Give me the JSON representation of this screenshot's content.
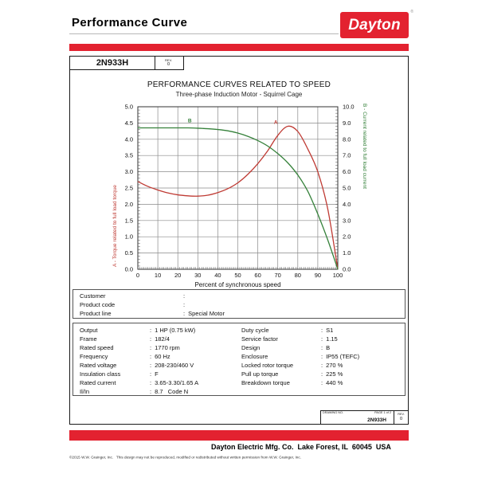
{
  "colors": {
    "brand_red": "#e32230",
    "torque_red": "#bf3a33",
    "current_green": "#35813a",
    "grid_gray": "#8a8a8a",
    "plot_border": "#333333"
  },
  "header": {
    "title": "Performance Curve",
    "logo_text": "Dayton",
    "logo_reg": "®"
  },
  "part_box": {
    "part_number": "2N933H",
    "rev_label": "REV.",
    "rev_value": "0"
  },
  "chart_data": {
    "type": "line",
    "title": "PERFORMANCE CURVES RELATED TO SPEED",
    "subtitle": "Three-phase Induction Motor - Squirrel Cage",
    "x_axis": {
      "label": "Percent of synchronous speed",
      "min": 0,
      "max": 100,
      "step": 10
    },
    "left_axis": {
      "label": "A - Torque related to full load torque",
      "min": 0,
      "max": 5,
      "step": 0.5,
      "color": "#bf3a33"
    },
    "right_axis": {
      "label": "B - Current related to full load current",
      "min": 0,
      "max": 10,
      "step": 1,
      "color": "#35813a"
    },
    "grid": true,
    "series": [
      {
        "name": "A - Torque",
        "axis": "left",
        "color": "#bf3a33",
        "x": [
          0,
          5,
          10,
          15,
          20,
          25,
          30,
          35,
          40,
          45,
          50,
          55,
          60,
          65,
          70,
          75,
          80,
          85,
          90,
          95,
          100
        ],
        "y": [
          2.7,
          2.55,
          2.44,
          2.35,
          2.29,
          2.26,
          2.25,
          2.28,
          2.36,
          2.48,
          2.66,
          2.92,
          3.25,
          3.65,
          4.12,
          4.4,
          4.24,
          3.7,
          3.0,
          1.85,
          0.0
        ],
        "marker": {
          "label": "A",
          "x": 69,
          "y": 4.47
        }
      },
      {
        "name": "B - Current",
        "axis": "right",
        "color": "#35813a",
        "x": [
          0,
          5,
          10,
          15,
          20,
          25,
          30,
          35,
          40,
          45,
          50,
          55,
          60,
          65,
          70,
          75,
          80,
          85,
          90,
          95,
          100
        ],
        "y": [
          8.7,
          8.7,
          8.7,
          8.7,
          8.7,
          8.7,
          8.68,
          8.65,
          8.6,
          8.52,
          8.38,
          8.18,
          7.92,
          7.58,
          7.12,
          6.55,
          5.8,
          4.8,
          3.4,
          1.8,
          0.0
        ],
        "marker": {
          "label": "B",
          "x": 26,
          "y": 9.05
        }
      }
    ]
  },
  "customer_table": {
    "rows": [
      {
        "label": "Customer",
        "value": ""
      },
      {
        "label": "Product code",
        "value": ""
      },
      {
        "label": "Product line",
        "value": "Special Motor"
      }
    ]
  },
  "specs": {
    "left": [
      {
        "label": "Output",
        "value": "1 HP (0.75 kW)"
      },
      {
        "label": "Frame",
        "value": "182/4"
      },
      {
        "label": "Rated speed",
        "value": "1770 rpm"
      },
      {
        "label": "Frequency",
        "value": "60 Hz"
      },
      {
        "label": "Rated voltage",
        "value": "208-230/460 V"
      },
      {
        "label": "Insulation class",
        "value": "F"
      },
      {
        "label": "Rated current",
        "value": "3.65-3.30/1.65 A"
      },
      {
        "label": "Il/In",
        "value": "8.7   Code N"
      }
    ],
    "right": [
      {
        "label": "Duty cycle",
        "value": "S1"
      },
      {
        "label": "Service factor",
        "value": "1.15"
      },
      {
        "label": "Design",
        "value": "B"
      },
      {
        "label": "Enclosure",
        "value": "IP55 (TEFC)"
      },
      {
        "label": "Locked rotor torque",
        "value": "270 %"
      },
      {
        "label": "Pull up torque",
        "value": "225 %"
      },
      {
        "label": "Breakdown torque",
        "value": "440 %"
      }
    ]
  },
  "drawing_box": {
    "drawing_no_label": "DRAWING NO.",
    "page": "PAGE 1 of 2",
    "number": "2N933H",
    "rev_label": "REV.",
    "rev_value": "0"
  },
  "footer": {
    "address": "Dayton Electric Mfg. Co.  Lake Forest, IL  60045  USA",
    "copyright": "©2015 W.W. Grainger, Inc.   This design may not be reproduced, modified or redistributed without written permission from W.W. Grainger, Inc."
  }
}
